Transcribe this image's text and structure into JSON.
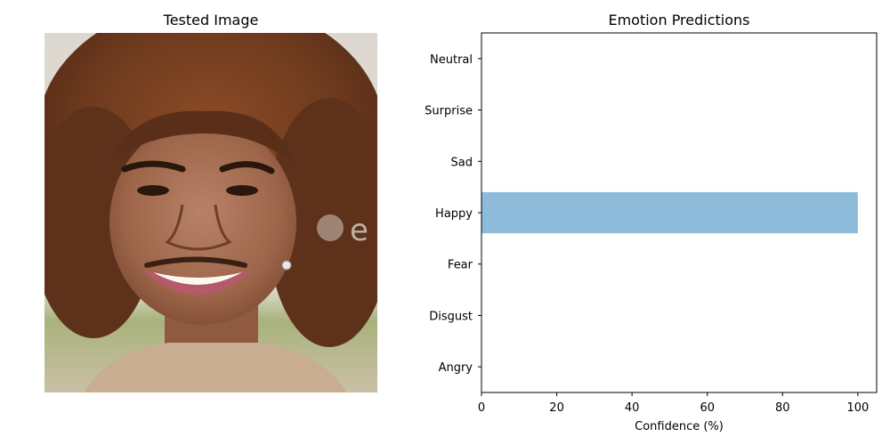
{
  "left_panel": {
    "title": "Tested Image",
    "photo_icon": "portrait-photo",
    "watermark_text": "e"
  },
  "chart_data": {
    "type": "bar",
    "orientation": "horizontal",
    "title": "Emotion Predictions",
    "xlabel": "Confidence (%)",
    "ylabel": "",
    "categories": [
      "Angry",
      "Disgust",
      "Fear",
      "Happy",
      "Sad",
      "Surprise",
      "Neutral"
    ],
    "values": [
      0,
      0,
      0,
      100,
      0,
      0,
      0
    ],
    "xlim": [
      0,
      105
    ],
    "xticks": [
      "0",
      "20",
      "40",
      "60",
      "80",
      "100"
    ],
    "bar_color": "#8fbbdb",
    "grid": false,
    "legend": false
  }
}
